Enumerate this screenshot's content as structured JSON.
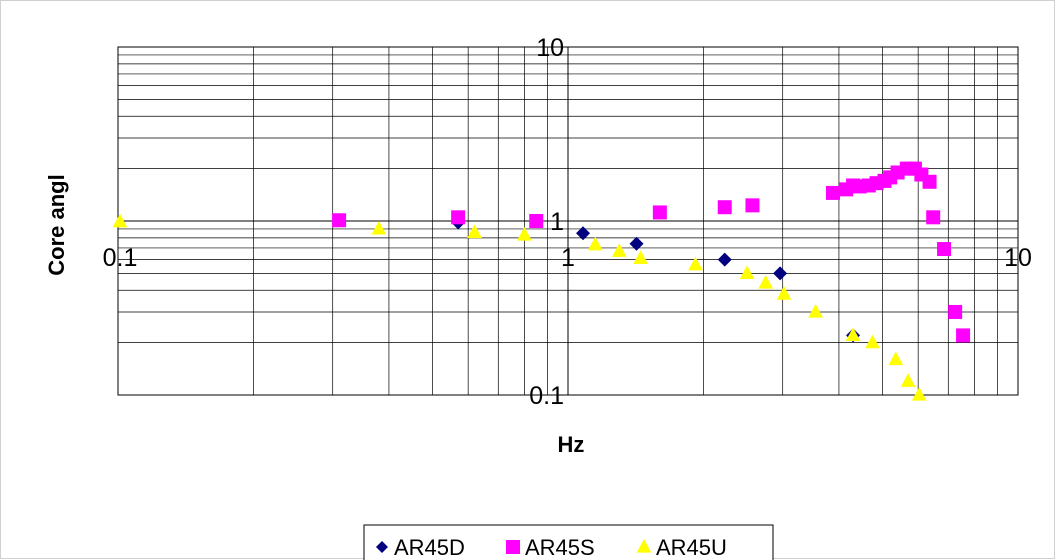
{
  "chart_data": {
    "type": "scatter",
    "title": "",
    "xlabel": "Hz",
    "ylabel": "Core angl",
    "xscale": "log",
    "yscale": "log",
    "xlim": [
      0.1,
      10
    ],
    "ylim": [
      0.1,
      10
    ],
    "x_ticks": [
      "0.1",
      "1",
      "10"
    ],
    "y_ticks": [
      "0.1",
      "1",
      "10"
    ],
    "grid": true,
    "legend_position": "bottom",
    "series": [
      {
        "name": "AR45D",
        "marker": "diamond",
        "color": "#000080",
        "points": [
          [
            0.57,
            0.98
          ],
          [
            1.08,
            0.85
          ],
          [
            1.42,
            0.74
          ],
          [
            2.23,
            0.6
          ],
          [
            2.96,
            0.5
          ],
          [
            4.3,
            0.22
          ]
        ]
      },
      {
        "name": "AR45S",
        "marker": "square",
        "color": "#ff00ff",
        "points": [
          [
            0.31,
            1.01
          ],
          [
            0.57,
            1.05
          ],
          [
            0.85,
            1.0
          ],
          [
            1.6,
            1.12
          ],
          [
            2.23,
            1.2
          ],
          [
            2.57,
            1.23
          ],
          [
            3.88,
            1.45
          ],
          [
            4.15,
            1.52
          ],
          [
            4.3,
            1.6
          ],
          [
            4.45,
            1.58
          ],
          [
            4.66,
            1.6
          ],
          [
            4.85,
            1.65
          ],
          [
            5.05,
            1.7
          ],
          [
            5.2,
            1.78
          ],
          [
            5.4,
            1.9
          ],
          [
            5.66,
            2.0
          ],
          [
            5.9,
            2.0
          ],
          [
            6.1,
            1.85
          ],
          [
            6.36,
            1.68
          ],
          [
            6.48,
            1.05
          ],
          [
            6.85,
            0.69
          ],
          [
            7.25,
            0.3
          ],
          [
            7.55,
            0.22
          ]
        ]
      },
      {
        "name": "AR45U",
        "marker": "triangle",
        "color": "#ffff00",
        "points": [
          [
            0.101,
            0.99
          ],
          [
            0.38,
            0.9
          ],
          [
            0.62,
            0.86
          ],
          [
            0.8,
            0.83
          ],
          [
            1.15,
            0.73
          ],
          [
            1.3,
            0.67
          ],
          [
            1.45,
            0.61
          ],
          [
            1.92,
            0.56
          ],
          [
            2.5,
            0.5
          ],
          [
            2.75,
            0.44
          ],
          [
            3.02,
            0.38
          ],
          [
            3.55,
            0.3
          ],
          [
            4.3,
            0.22
          ],
          [
            4.75,
            0.2
          ],
          [
            5.35,
            0.16
          ],
          [
            5.7,
            0.12
          ],
          [
            6.03,
            0.1
          ]
        ]
      }
    ]
  }
}
